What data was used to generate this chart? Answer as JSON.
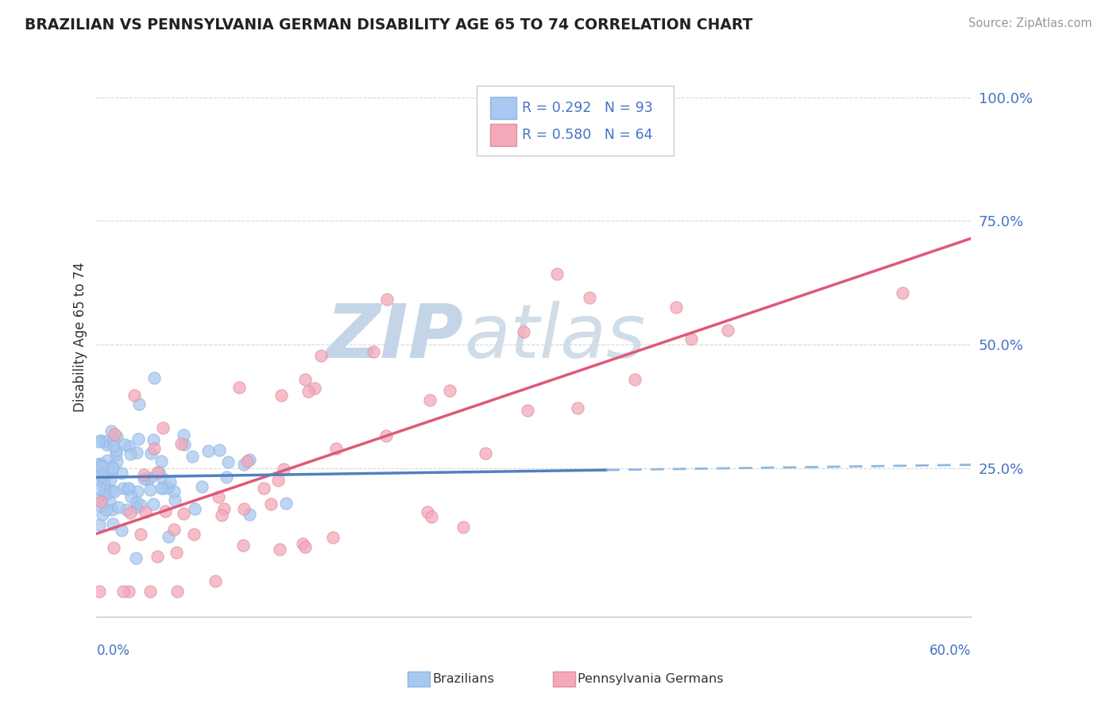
{
  "title": "BRAZILIAN VS PENNSYLVANIA GERMAN DISABILITY AGE 65 TO 74 CORRELATION CHART",
  "source": "Source: ZipAtlas.com",
  "ylabel": "Disability Age 65 to 74",
  "ytick_labels": [
    "25.0%",
    "50.0%",
    "75.0%",
    "100.0%"
  ],
  "ytick_values": [
    0.25,
    0.5,
    0.75,
    1.0
  ],
  "grid_yticks": [
    0.25,
    0.5,
    0.75,
    1.0
  ],
  "xlim": [
    0.0,
    0.6
  ],
  "ylim": [
    -0.05,
    1.08
  ],
  "legend_r1": "R = 0.292",
  "legend_n1": "N = 93",
  "legend_r2": "R = 0.580",
  "legend_n2": "N = 64",
  "color_brazilian": "#A8C8F0",
  "color_pa_german": "#F4A8B8",
  "color_trend_brazilian_solid": "#5080C0",
  "color_trend_brazilian_dash": "#90B8E0",
  "color_trend_pa_german": "#E05878",
  "color_text_blue": "#4472C4",
  "watermark_color": "#C8D8EC",
  "background_color": "#FFFFFF",
  "grid_color": "#D8D8D8",
  "seed": 42
}
